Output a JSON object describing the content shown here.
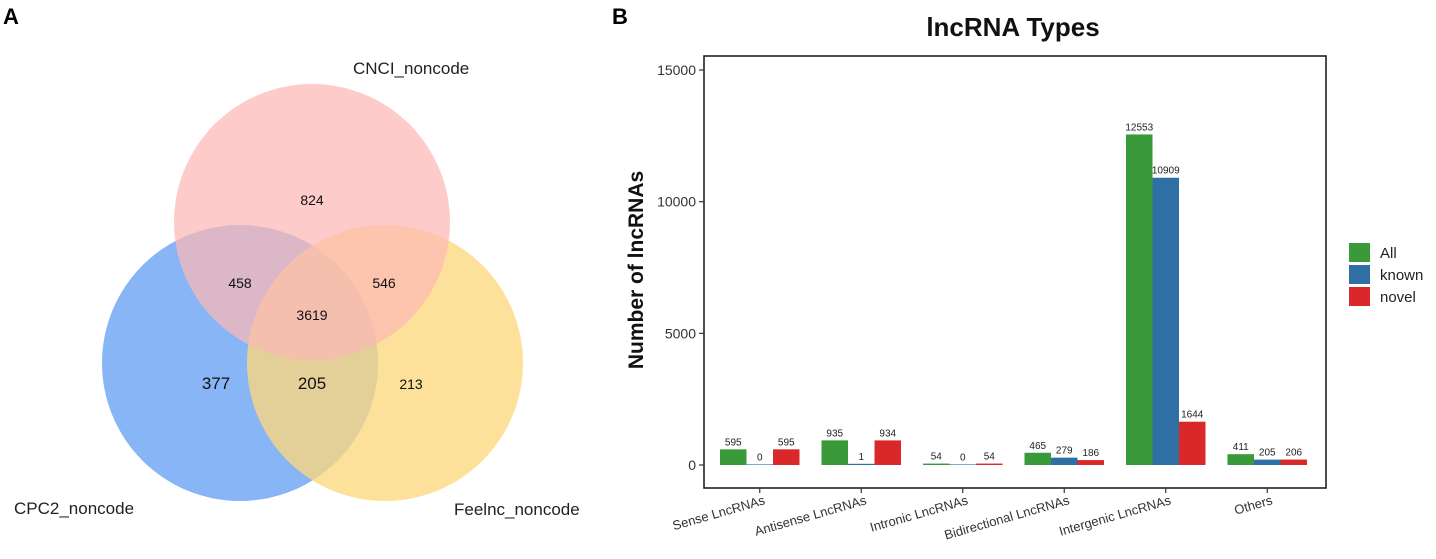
{
  "panel_a": {
    "letter": "A",
    "sets": {
      "top_label": "CNCI_noncode",
      "left_label": "CPC2_noncode",
      "right_label": "Feelnc_noncode"
    },
    "colors": {
      "top": "#fcb9b5",
      "left": "#7eaff5",
      "right": "#fdd77e"
    },
    "regions": {
      "top_only": "824",
      "top_left": "458",
      "top_right": "546",
      "center": "3619",
      "left_only": "377",
      "left_right": "205",
      "right_only": "213"
    }
  },
  "panel_b": {
    "letter": "B"
  },
  "chart_data": {
    "type": "bar",
    "title": "lncRNA Types",
    "xlabel": "",
    "ylabel": "Number of lncRNAs",
    "ylim": [
      -500,
      16000
    ],
    "yticks": [
      0,
      5000,
      10000,
      15000
    ],
    "grid": false,
    "legend_position": "right",
    "categories": [
      "Sense LncRNAs",
      "Antisense LncRNAs",
      "Intronic LncRNAs",
      "Bidirectional LncRNAs",
      "Intergenic LncRNAs",
      "Others"
    ],
    "series": [
      {
        "name": "All",
        "color": "#3a9a3a",
        "values": [
          595,
          935,
          54,
          465,
          12553,
          411
        ]
      },
      {
        "name": "known",
        "color": "#2f6fa3",
        "values": [
          0,
          1,
          0,
          279,
          10909,
          205
        ]
      },
      {
        "name": "novel",
        "color": "#d9272a",
        "values": [
          595,
          934,
          54,
          186,
          1644,
          206
        ]
      }
    ]
  }
}
